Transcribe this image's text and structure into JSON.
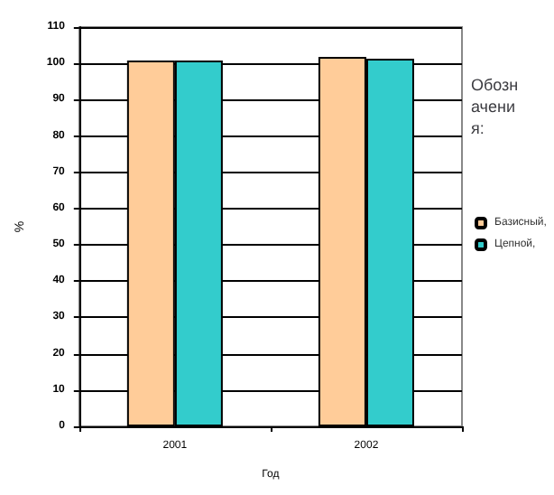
{
  "chart_data": {
    "type": "bar",
    "xlabel": "Год",
    "ylabel": "%",
    "legend_title": "Обозначения:",
    "categories": [
      "2001",
      "2002"
    ],
    "series": [
      {
        "name": "Базисный,",
        "color": "#ffcc99",
        "values": [
          100.8,
          101.8
        ]
      },
      {
        "name": "Цепной,",
        "color": "#33cccc",
        "values": [
          100.8,
          101.3
        ]
      }
    ],
    "ylim": [
      0,
      110
    ],
    "yticks": [
      0,
      10,
      20,
      30,
      40,
      50,
      60,
      70,
      80,
      90,
      100,
      110
    ],
    "grid": "y",
    "legend": "right"
  }
}
